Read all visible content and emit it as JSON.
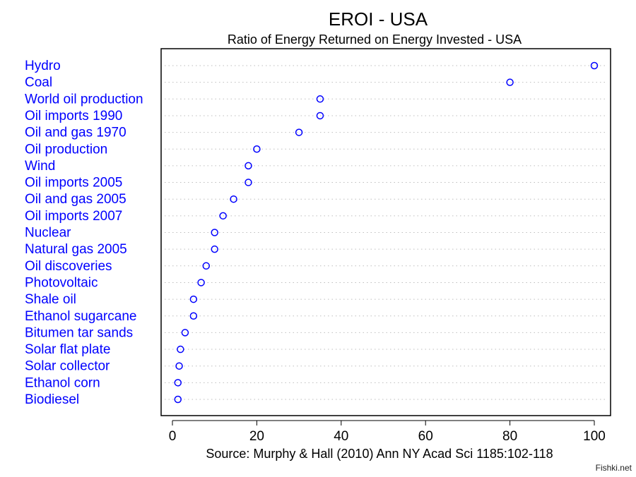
{
  "chart_data": {
    "type": "scatter",
    "title": "EROI - USA",
    "subtitle": "Ratio of Energy Returned on Energy Invested - USA",
    "caption": "Source: Murphy & Hall (2010) Ann NY Acad Sci 1185:102-118",
    "xlabel": "",
    "ylabel": "",
    "xlim": [
      0,
      100
    ],
    "xticks": [
      0,
      20,
      40,
      60,
      80,
      100
    ],
    "grid": "dotted horizontal",
    "categories": [
      "Hydro",
      "Coal",
      "World oil production",
      "Oil imports 1990",
      "Oil and gas 1970",
      "Oil production",
      "Wind",
      "Oil imports 2005",
      "Oil and gas 2005",
      "Oil imports 2007",
      "Nuclear",
      "Natural gas 2005",
      "Oil discoveries",
      "Photovoltaic",
      "Shale oil",
      "Ethanol sugarcane",
      "Bitumen tar sands",
      "Solar flat plate",
      "Solar collector",
      "Ethanol corn",
      "Biodiesel"
    ],
    "values": [
      100,
      80,
      35,
      35,
      30,
      20,
      18,
      18,
      14.5,
      12,
      10,
      10,
      8,
      6.8,
      5,
      5,
      3,
      1.9,
      1.6,
      1.3,
      1.3
    ],
    "colors": {
      "label": "#0000ff",
      "marker": "#0000ff",
      "grid": "#bebebe",
      "axis": "#000000"
    }
  },
  "watermark": "Fishki.net"
}
